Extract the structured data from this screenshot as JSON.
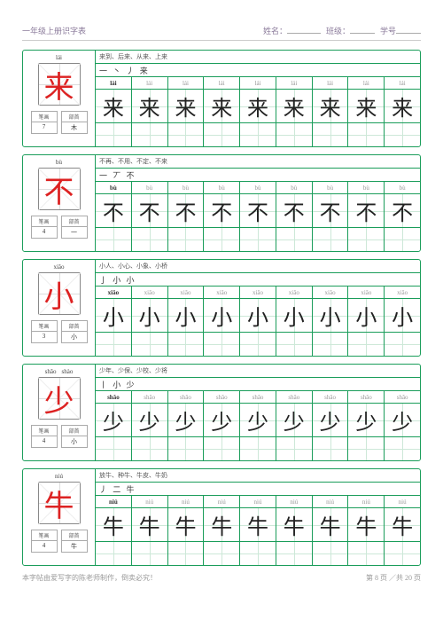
{
  "header": {
    "title": "一年级上册识字表",
    "name_label": "姓名：",
    "class_label": "班级：",
    "num_label": "学号"
  },
  "blocks": [
    {
      "pinyin_top": [
        "lái"
      ],
      "char": "来",
      "strokes_count": "7",
      "radical": "木",
      "words": "来到、后来、从来、上来",
      "stroke_seq": "一 丶 丿 来",
      "pinyin": "lái",
      "grid_char": "来"
    },
    {
      "pinyin_top": [
        "bù"
      ],
      "char": "不",
      "strokes_count": "4",
      "radical": "一",
      "words": "不再、不用、不定、不来",
      "stroke_seq": "一 丆 不",
      "pinyin": "bù",
      "grid_char": "不"
    },
    {
      "pinyin_top": [
        "xiǎo"
      ],
      "char": "小",
      "strokes_count": "3",
      "radical": "小",
      "words": "小人、小心、小象、小桥",
      "stroke_seq": "亅 小 小",
      "pinyin": "xiǎo",
      "grid_char": "小"
    },
    {
      "pinyin_top": [
        "shǎo",
        "shào"
      ],
      "char": "少",
      "strokes_count": "4",
      "radical": "小",
      "words": "少年、少保、少校、少将",
      "stroke_seq": "丨 小 少",
      "pinyin": "shǎo",
      "grid_char": "少"
    },
    {
      "pinyin_top": [
        "niú"
      ],
      "char": "牛",
      "strokes_count": "4",
      "radical": "牛",
      "words": "放牛、种牛、牛皮、牛奶",
      "stroke_seq": "丿 二 牛",
      "pinyin": "niú",
      "grid_char": "牛"
    }
  ],
  "labels": {
    "strokes": "笔画",
    "radical": "部首"
  },
  "footer": {
    "left": "本字帖由爱写字的陈老师制作，倒卖必究！",
    "right_a": "第 8 页",
    "right_b": "／共 20 页"
  },
  "grid_cols": 9
}
